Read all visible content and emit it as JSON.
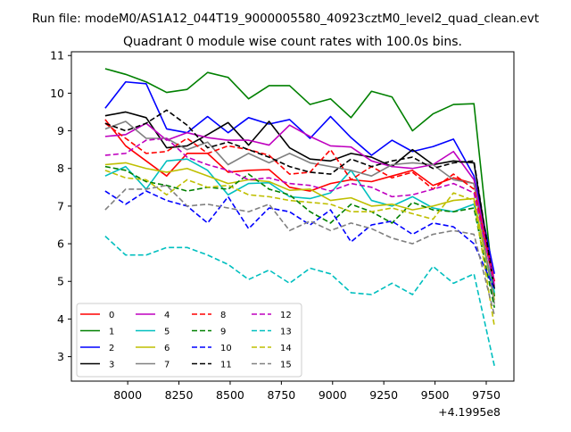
{
  "figure": {
    "suptitle": "Run file: modeM0/AS1A12_044T19_9000005580_40923cztM0_level2_quad_clean.evt",
    "title": "Quadrant 0 module wise count rates with 100.0s bins.",
    "offset_text": "+4.1995e8"
  },
  "chart_data": {
    "type": "line",
    "title": "Quadrant 0 module wise count rates with 100.0s bins.",
    "xlabel": "",
    "ylabel": "",
    "x_offset": 419950000,
    "xlim": [
      7725,
      9885
    ],
    "ylim": [
      2.35,
      11.1
    ],
    "xticks": [
      8000,
      8250,
      8500,
      8750,
      9000,
      9250,
      9500,
      9750
    ],
    "yticks": [
      3,
      4,
      5,
      6,
      7,
      8,
      9,
      10,
      11
    ],
    "x": [
      7890,
      7990,
      8090,
      8190,
      8290,
      8390,
      8490,
      8590,
      8690,
      8790,
      8890,
      8990,
      9090,
      9190,
      9290,
      9390,
      9490,
      9590,
      9690,
      9790
    ],
    "grid": false,
    "legend_position": "lower-left",
    "legend_columns": 4,
    "series": [
      {
        "name": "0",
        "color": "#ff0000",
        "dash": "solid",
        "values": [
          9.3,
          8.6,
          8.2,
          7.8,
          8.4,
          8.4,
          7.9,
          7.95,
          7.97,
          7.5,
          7.4,
          7.6,
          7.7,
          7.65,
          7.8,
          7.95,
          7.55,
          7.75,
          7.6,
          4.8
        ]
      },
      {
        "name": "1",
        "color": "#008000",
        "dash": "solid",
        "values": [
          10.65,
          10.5,
          10.3,
          10.02,
          10.1,
          10.55,
          10.42,
          9.85,
          10.2,
          10.2,
          9.7,
          9.85,
          9.35,
          10.05,
          9.9,
          9.0,
          9.45,
          9.7,
          9.72,
          4.6
        ]
      },
      {
        "name": "2",
        "color": "#0000ff",
        "dash": "solid",
        "values": [
          9.6,
          10.3,
          10.25,
          9.05,
          8.95,
          9.38,
          8.95,
          9.35,
          9.18,
          9.3,
          8.8,
          9.38,
          8.82,
          8.35,
          8.75,
          8.45,
          8.58,
          8.78,
          7.8,
          5.2
        ]
      },
      {
        "name": "3",
        "color": "#000000",
        "dash": "solid",
        "values": [
          9.4,
          9.5,
          9.35,
          8.55,
          8.6,
          8.9,
          9.22,
          8.62,
          9.25,
          8.55,
          8.25,
          8.2,
          8.4,
          8.3,
          8.05,
          8.5,
          8.1,
          8.2,
          8.15,
          4.8
        ]
      },
      {
        "name": "4",
        "color": "#bf00bf",
        "dash": "solid",
        "values": [
          8.85,
          8.9,
          9.2,
          8.75,
          8.95,
          8.82,
          8.75,
          8.75,
          8.62,
          9.15,
          8.85,
          8.6,
          8.57,
          8.2,
          8.05,
          8.0,
          8.1,
          8.45,
          7.7,
          5.0
        ]
      },
      {
        "name": "5",
        "color": "#00bfbf",
        "dash": "solid",
        "values": [
          7.8,
          8.05,
          7.45,
          8.2,
          8.25,
          7.95,
          7.3,
          7.6,
          7.62,
          7.25,
          7.2,
          7.35,
          7.95,
          7.15,
          7.0,
          7.25,
          6.95,
          6.85,
          7.05,
          4.7
        ]
      },
      {
        "name": "6",
        "color": "#bfbf00",
        "dash": "solid",
        "values": [
          8.1,
          8.15,
          8.0,
          7.9,
          8.0,
          7.8,
          7.6,
          7.7,
          7.65,
          7.42,
          7.45,
          7.15,
          7.22,
          7.0,
          7.05,
          6.9,
          7.0,
          7.15,
          7.2,
          4.5
        ]
      },
      {
        "name": "7",
        "color": "#808080",
        "dash": "solid",
        "values": [
          9.05,
          9.25,
          8.8,
          8.8,
          8.5,
          8.7,
          8.1,
          8.4,
          8.15,
          8.4,
          8.15,
          8.05,
          7.95,
          7.8,
          8.1,
          8.15,
          8.1,
          7.7,
          7.6,
          4.4
        ]
      },
      {
        "name": "8",
        "color": "#ff0000",
        "dash": "dashed",
        "values": [
          9.2,
          8.8,
          8.4,
          8.45,
          8.8,
          8.4,
          8.6,
          8.5,
          8.35,
          7.85,
          7.9,
          8.5,
          7.7,
          8.05,
          7.75,
          7.9,
          7.45,
          7.85,
          7.45,
          5.0
        ]
      },
      {
        "name": "9",
        "color": "#008000",
        "dash": "dashed",
        "values": [
          8.05,
          7.95,
          7.65,
          7.55,
          7.4,
          7.5,
          7.45,
          7.85,
          7.45,
          7.3,
          6.85,
          6.55,
          7.05,
          6.85,
          6.55,
          7.1,
          6.9,
          6.85,
          6.95,
          4.3
        ]
      },
      {
        "name": "10",
        "color": "#0000ff",
        "dash": "dashed",
        "values": [
          7.4,
          7.05,
          7.4,
          7.15,
          7.0,
          6.55,
          7.25,
          6.4,
          6.95,
          6.85,
          6.5,
          6.9,
          6.05,
          6.5,
          6.6,
          6.25,
          6.55,
          6.45,
          6.0,
          4.8
        ]
      },
      {
        "name": "11",
        "color": "#000000",
        "dash": "dashed",
        "values": [
          9.2,
          9.0,
          9.2,
          9.55,
          9.15,
          8.55,
          8.7,
          8.5,
          8.3,
          8.05,
          7.9,
          7.85,
          8.25,
          8.05,
          8.2,
          8.3,
          8.0,
          8.15,
          8.2,
          4.8
        ]
      },
      {
        "name": "12",
        "color": "#bf00bf",
        "dash": "dashed",
        "values": [
          8.35,
          8.4,
          8.75,
          8.8,
          8.3,
          8.1,
          7.95,
          7.7,
          7.75,
          7.6,
          7.55,
          7.4,
          7.6,
          7.5,
          7.25,
          7.3,
          7.45,
          7.6,
          7.35,
          4.9
        ]
      },
      {
        "name": "13",
        "color": "#00bfbf",
        "dash": "dashed",
        "values": [
          6.2,
          5.7,
          5.7,
          5.9,
          5.9,
          5.7,
          5.45,
          5.05,
          5.3,
          4.95,
          5.35,
          5.2,
          4.7,
          4.65,
          4.95,
          4.65,
          5.4,
          4.95,
          5.2,
          2.75
        ]
      },
      {
        "name": "14",
        "color": "#bfbf00",
        "dash": "dashed",
        "values": [
          7.95,
          7.75,
          7.7,
          7.3,
          7.7,
          7.5,
          7.55,
          7.3,
          7.25,
          7.15,
          7.1,
          7.05,
          6.85,
          6.85,
          6.95,
          6.8,
          6.65,
          7.35,
          7.15,
          3.8
        ]
      },
      {
        "name": "15",
        "color": "#808080",
        "dash": "dashed",
        "values": [
          6.9,
          7.45,
          7.45,
          7.55,
          7.0,
          7.05,
          6.95,
          6.85,
          7.05,
          6.35,
          6.6,
          6.35,
          6.55,
          6.4,
          6.15,
          6.0,
          6.25,
          6.35,
          6.25,
          4.1
        ]
      }
    ]
  }
}
